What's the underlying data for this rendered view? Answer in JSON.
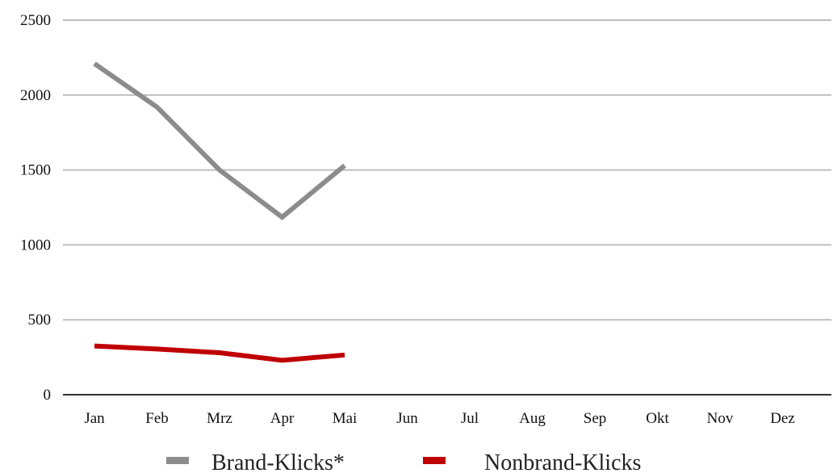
{
  "chart_data": {
    "type": "line",
    "title": "",
    "xlabel": "",
    "ylabel": "",
    "categories": [
      "Jan",
      "Feb",
      "Mrz",
      "Apr",
      "Mai",
      "Jun",
      "Jul",
      "Aug",
      "Sep",
      "Okt",
      "Nov",
      "Dez"
    ],
    "ylim": [
      0,
      2500
    ],
    "yticks": [
      0,
      500,
      1000,
      1500,
      2000,
      2500
    ],
    "grid": true,
    "legend_position": "bottom",
    "series": [
      {
        "name": "Brand-Klicks*",
        "color": "#8c8c8c",
        "values": [
          2210,
          1920,
          1500,
          1185,
          1530,
          null,
          null,
          null,
          null,
          null,
          null,
          null
        ]
      },
      {
        "name": "Nonbrand-Klicks",
        "color": "#c00000",
        "values": [
          325,
          305,
          280,
          230,
          265,
          null,
          null,
          null,
          null,
          null,
          null,
          null
        ]
      }
    ]
  }
}
